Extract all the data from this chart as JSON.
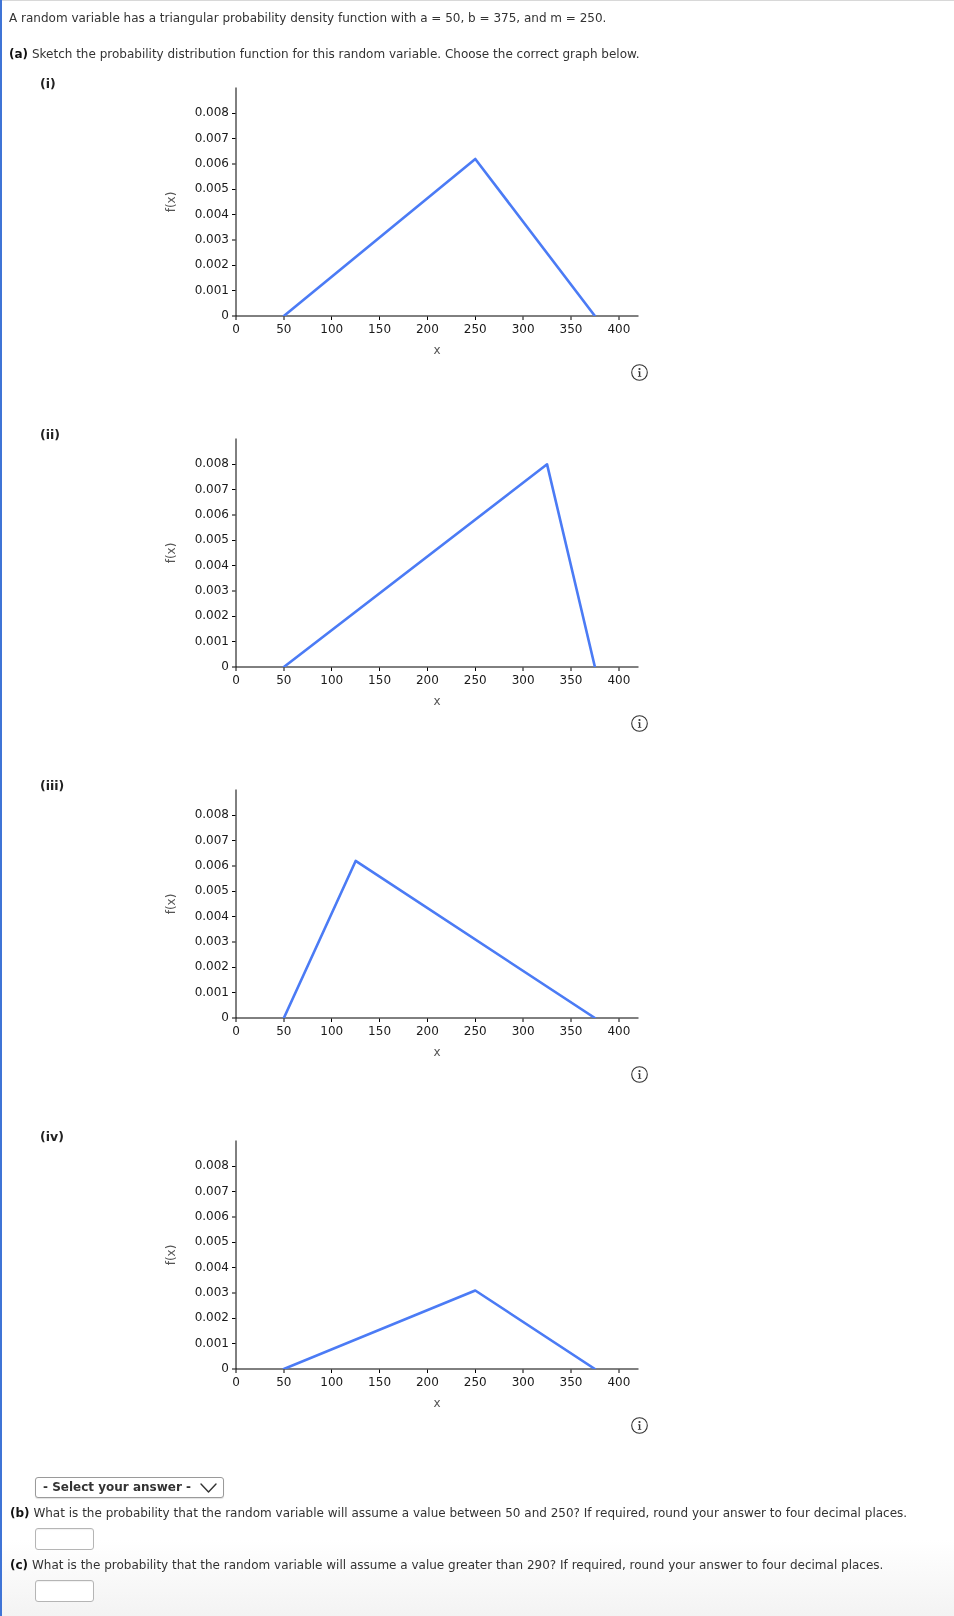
{
  "chart_data": [
    {
      "type": "line",
      "xlabel": "x",
      "ylabel": "f(x)",
      "x": [
        50,
        250,
        375
      ],
      "values": [
        0,
        0.0062,
        0
      ],
      "color": "#4b7bf5",
      "marker": "none",
      "xlim": [
        0,
        420
      ],
      "ylim": [
        0,
        0.009
      ],
      "xticks": [
        0,
        50,
        100,
        150,
        200,
        250,
        300,
        350,
        400
      ],
      "yticks": [
        0,
        0.001,
        0.002,
        0.003,
        0.004,
        0.005,
        0.006,
        0.007,
        0.008
      ],
      "annotations": [
        "A random variable has a triangular probability density function with a = 50, b = 375, and m = 250.",
        "(a) Sketch the probability distribution function for this random variable. Choose the correct graph below.",
        "(i)"
      ]
    },
    {
      "type": "line",
      "xlabel": "x",
      "ylabel": "f(x)",
      "x": [
        50,
        325,
        375
      ],
      "values": [
        0,
        0.008,
        0
      ],
      "color": "#4b7bf5",
      "marker": "none",
      "xlim": [
        0,
        420
      ],
      "ylim": [
        0,
        0.009
      ],
      "xticks": [
        0,
        50,
        100,
        150,
        200,
        250,
        300,
        350,
        400
      ],
      "yticks": [
        0,
        0.001,
        0.002,
        0.003,
        0.004,
        0.005,
        0.006,
        0.007,
        0.008
      ],
      "annotations": [
        "(ii)"
      ]
    },
    {
      "type": "line",
      "xlabel": "x",
      "ylabel": "f(x)",
      "x": [
        50,
        125,
        375
      ],
      "values": [
        0,
        0.0062,
        0
      ],
      "color": "#4b7bf5",
      "marker": "none",
      "xlim": [
        0,
        420
      ],
      "ylim": [
        0,
        0.009
      ],
      "xticks": [
        0,
        50,
        100,
        150,
        200,
        250,
        300,
        350,
        400
      ],
      "yticks": [
        0,
        0.001,
        0.002,
        0.003,
        0.004,
        0.005,
        0.006,
        0.007,
        0.008
      ],
      "annotations": [
        "(iii)"
      ]
    },
    {
      "type": "line",
      "xlabel": "x",
      "ylabel": "f(x)",
      "x": [
        50,
        250,
        375
      ],
      "values": [
        0,
        0.0031,
        0
      ],
      "color": "#4b7bf5",
      "marker": "none",
      "xlim": [
        0,
        420
      ],
      "ylim": [
        0,
        0.009
      ],
      "xticks": [
        0,
        50,
        100,
        150,
        200,
        250,
        300,
        350,
        400
      ],
      "yticks": [
        0,
        0.001,
        0.002,
        0.003,
        0.004,
        0.005,
        0.006,
        0.007,
        0.008
      ],
      "annotations": [
        "(iv)",
        "- Select your answer -",
        "(b) What is the probability that the random variable will assume a value between 50 and 250? If required, round your answer to four decimal places.",
        "(c) What is the probability that the random variable will assume a value greater than 290? If required, round your answer to four decimal places."
      ]
    }
  ]
}
